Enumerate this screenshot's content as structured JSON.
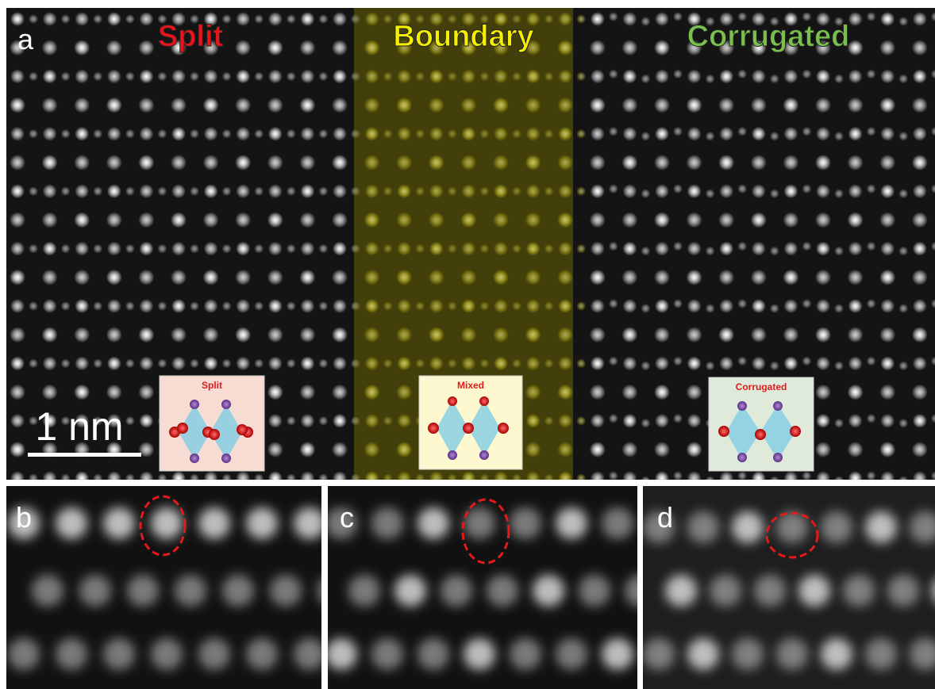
{
  "panel_a": {
    "label": "a",
    "regions": [
      {
        "title": "Split"
      },
      {
        "title": "Boundary"
      },
      {
        "title": "Corrugated"
      }
    ],
    "scale_bar": "1 nm",
    "insets": [
      {
        "title": "Split"
      },
      {
        "title": "Mixed"
      },
      {
        "title": "Corrugated"
      }
    ]
  },
  "panels": [
    {
      "label": "b"
    },
    {
      "label": "c"
    },
    {
      "label": "d"
    }
  ]
}
